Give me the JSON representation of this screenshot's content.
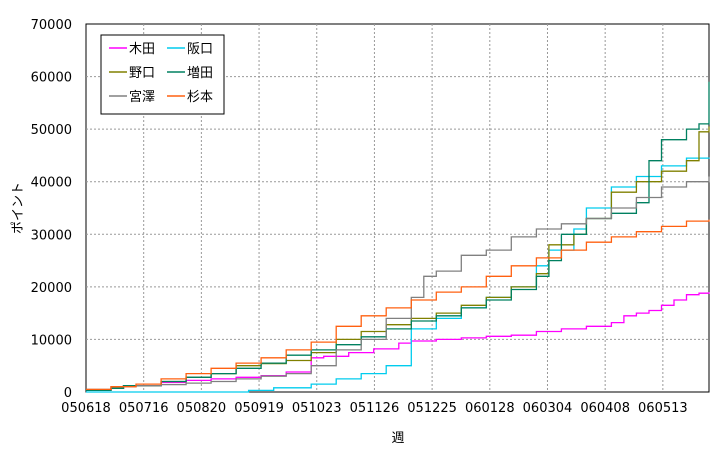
{
  "chart_data": {
    "type": "line",
    "title": "",
    "xlabel": "週",
    "ylabel": "ポイント",
    "ylim": [
      0,
      70000
    ],
    "yticks": [
      0,
      10000,
      20000,
      30000,
      40000,
      50000,
      60000,
      70000
    ],
    "x_tick_labels": [
      "050618",
      "050716",
      "050820",
      "050919",
      "051023",
      "051126",
      "051225",
      "060128",
      "060304",
      "060408",
      "060513"
    ],
    "xlim": [
      0,
      49.8
    ],
    "grid": true,
    "legend_position": "top-left",
    "series": [
      {
        "name": "木田",
        "color": "#ff00ff",
        "x": [
          0,
          2,
          3,
          6,
          8,
          10,
          12,
          14,
          16,
          18,
          19,
          21,
          23,
          25,
          26,
          28,
          30,
          32,
          34,
          36,
          38,
          40,
          42,
          43,
          44,
          45,
          46,
          47,
          48,
          49,
          49.8
        ],
        "y": [
          300,
          700,
          1200,
          1800,
          2200,
          2500,
          2800,
          3100,
          3800,
          6500,
          6800,
          7500,
          8200,
          9300,
          9700,
          10000,
          10300,
          10600,
          10800,
          11500,
          12000,
          12500,
          13200,
          14500,
          15000,
          15500,
          16500,
          17500,
          18500,
          18800,
          19000
        ]
      },
      {
        "name": "阪口",
        "color": "#00ccee",
        "x": [
          0,
          10,
          13,
          15,
          18,
          20,
          22,
          24,
          26,
          28,
          30,
          32,
          34,
          36,
          37,
          39,
          40,
          42,
          44,
          46,
          48,
          49.8
        ],
        "y": [
          0,
          0,
          300,
          800,
          1500,
          2500,
          3500,
          5000,
          12000,
          14000,
          16000,
          18000,
          20000,
          24000,
          27000,
          31000,
          35000,
          39000,
          41000,
          43000,
          44500,
          44600
        ]
      },
      {
        "name": "野口",
        "color": "#808000",
        "x": [
          0,
          2,
          3,
          6,
          8,
          10,
          12,
          14,
          16,
          18,
          20,
          22,
          24,
          26,
          28,
          30,
          32,
          34,
          36,
          37,
          39,
          40,
          42,
          44,
          46,
          48,
          49,
          49.8
        ],
        "y": [
          300,
          700,
          1200,
          2000,
          2800,
          3500,
          5000,
          5400,
          6000,
          7500,
          10000,
          11500,
          12800,
          14000,
          15000,
          16500,
          18000,
          20000,
          22500,
          28000,
          30000,
          33000,
          38000,
          40000,
          42000,
          44000,
          49500,
          50500
        ]
      },
      {
        "name": "増田",
        "color": "#008060",
        "x": [
          0,
          2,
          3,
          6,
          8,
          10,
          12,
          14,
          16,
          18,
          20,
          22,
          24,
          26,
          28,
          30,
          32,
          34,
          36,
          37,
          38,
          40,
          42,
          44,
          45,
          46,
          48,
          49,
          49.8
        ],
        "y": [
          300,
          700,
          1200,
          2000,
          2800,
          3500,
          4500,
          5500,
          7000,
          8000,
          9000,
          10500,
          12000,
          13500,
          14500,
          16000,
          17500,
          19500,
          22000,
          25000,
          30000,
          33000,
          34000,
          36000,
          44000,
          48000,
          50000,
          51000,
          59000
        ]
      },
      {
        "name": "宮澤",
        "color": "#808080",
        "x": [
          0,
          2,
          4,
          6,
          8,
          10,
          12,
          14,
          16,
          18,
          20,
          22,
          24,
          26,
          27,
          28,
          30,
          32,
          34,
          36,
          38,
          40,
          42,
          44,
          46,
          48,
          49.8
        ],
        "y": [
          500,
          1000,
          1200,
          1400,
          1700,
          2000,
          2500,
          3000,
          3500,
          5000,
          8000,
          10000,
          14000,
          18000,
          22000,
          23000,
          26000,
          27000,
          29500,
          31000,
          32000,
          33000,
          35000,
          37000,
          39000,
          40000,
          41000
        ]
      },
      {
        "name": "杉本",
        "color": "#ff6010",
        "x": [
          0,
          2,
          4,
          6,
          8,
          10,
          12,
          14,
          16,
          18,
          20,
          22,
          24,
          26,
          28,
          30,
          32,
          34,
          36,
          38,
          40,
          42,
          44,
          46,
          48,
          49.8
        ],
        "y": [
          500,
          1000,
          1500,
          2500,
          3500,
          4500,
          5500,
          6500,
          8000,
          9500,
          12500,
          14500,
          16000,
          17500,
          19000,
          20000,
          22000,
          24000,
          25500,
          27000,
          28500,
          29500,
          30500,
          31500,
          32500,
          32800
        ]
      }
    ]
  }
}
